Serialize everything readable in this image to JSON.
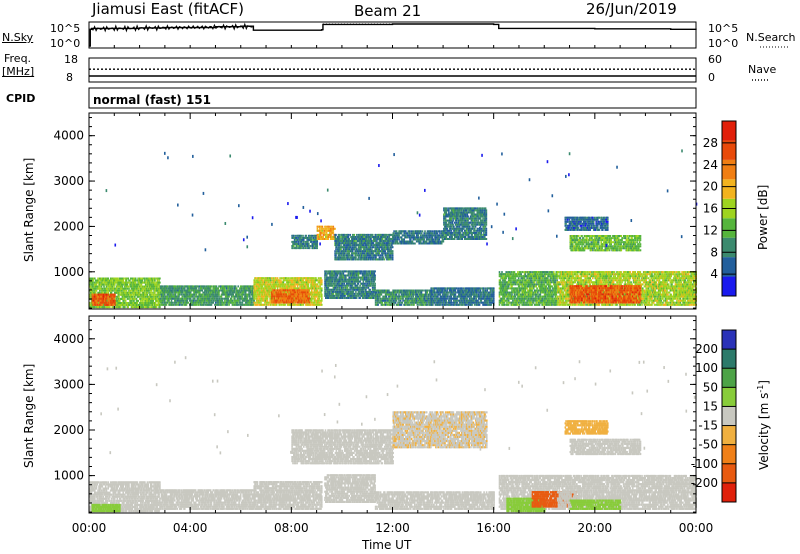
{
  "header": {
    "title": "Jiamusi East (fitACF)",
    "beam": "Beam 21",
    "date": "26/Jun/2019"
  },
  "side_labels": {
    "nsky": "N.Sky",
    "nsearch": "N.Search",
    "freq_line1": "Freq.",
    "freq_line2": "[MHz]",
    "nave": "Nave",
    "cpid": "CPID",
    "mode": "normal (fast) 151"
  },
  "noise_axis": {
    "left": [
      "10^5",
      "10^0"
    ],
    "right": [
      "10^5",
      "10^0"
    ]
  },
  "freq_axis": {
    "left": [
      "18",
      "8"
    ],
    "right": [
      "60",
      "0"
    ]
  },
  "x_axis": {
    "label": "Time UT",
    "ticks": [
      "00:00",
      "04:00",
      "08:00",
      "12:00",
      "16:00",
      "20:00",
      "00:00"
    ],
    "range_hours": [
      0,
      24
    ]
  },
  "colors": {
    "power": [
      "#1a1aee",
      "#225f9c",
      "#3b8a6e",
      "#55b53c",
      "#9ed41f",
      "#f2b31e",
      "#f07e12",
      "#e84a0a",
      "#e11f0a"
    ],
    "velocity": [
      "#2a32b8",
      "#2c7a6a",
      "#4da347",
      "#88cc3a",
      "#c8c8c0",
      "#f0b040",
      "#f08018",
      "#e85a10",
      "#e0200a"
    ]
  },
  "chart_data": [
    {
      "type": "line",
      "title": "N.Sky",
      "ylabel": "N.Sky",
      "x_unit": "hours UT",
      "y_scale": "log",
      "ylim": [
        "10^0",
        "10^5"
      ],
      "series": [
        {
          "name": "N.Sky",
          "x": [
            0,
            0.05,
            0.1,
            2,
            3,
            5,
            6,
            6.5,
            9.2,
            9.25,
            12,
            16,
            16.2,
            20,
            23,
            24
          ],
          "log_values": [
            0,
            3.8,
            4.0,
            4.1,
            4.2,
            4.4,
            4.5,
            3.6,
            3.7,
            4.9,
            5.0,
            4.9,
            4.0,
            3.9,
            3.8,
            3.7
          ]
        }
      ]
    },
    {
      "type": "line",
      "title": "Freq.",
      "ylabel": "Freq. [MHz]",
      "ylim": [
        8,
        18
      ],
      "y2label": "Nave",
      "y2lim": [
        0,
        60
      ],
      "series": [
        {
          "name": "Nave",
          "x": [
            0,
            24
          ],
          "values": [
            32,
            32
          ]
        },
        {
          "name": "Freq.",
          "x": [
            0,
            24
          ],
          "values": [
            10.5,
            10.5
          ]
        }
      ]
    },
    {
      "type": "heatmap",
      "title": "Power [dB]",
      "xlabel": "Time UT",
      "ylabel": "Slant Range [km]",
      "ylim": [
        180,
        4500
      ],
      "yticks": [
        1000,
        2000,
        3000,
        4000
      ],
      "colorbar": {
        "label": "Power [dB]",
        "ticks": [
          4,
          8,
          12,
          16,
          20,
          24,
          28
        ],
        "range": [
          0,
          32
        ]
      },
      "regions": [
        {
          "t": [
            0,
            2.8
          ],
          "r": [
            200,
            850
          ],
          "value": 14
        },
        {
          "t": [
            0.1,
            1.0
          ],
          "r": [
            250,
            500
          ],
          "value": 26
        },
        {
          "t": [
            2.8,
            6.5
          ],
          "r": [
            250,
            700
          ],
          "value": 10
        },
        {
          "t": [
            6.5,
            9.2
          ],
          "r": [
            250,
            850
          ],
          "value": 17
        },
        {
          "t": [
            7.2,
            8.7
          ],
          "r": [
            300,
            600
          ],
          "value": 25
        },
        {
          "t": [
            9.3,
            11.3
          ],
          "r": [
            400,
            1000
          ],
          "value": 8
        },
        {
          "t": [
            11.3,
            13.5
          ],
          "r": [
            250,
            600
          ],
          "value": 9
        },
        {
          "t": [
            13.5,
            16.0
          ],
          "r": [
            250,
            650
          ],
          "value": 7
        },
        {
          "t": [
            16.2,
            18.5
          ],
          "r": [
            250,
            1000
          ],
          "value": 12
        },
        {
          "t": [
            18.5,
            24.0
          ],
          "r": [
            250,
            1000
          ],
          "value": 16
        },
        {
          "t": [
            19.0,
            21.8
          ],
          "r": [
            300,
            700
          ],
          "value": 26
        },
        {
          "t": [
            8.0,
            9.0
          ],
          "r": [
            1500,
            1800
          ],
          "value": 8
        },
        {
          "t": [
            9.0,
            9.7
          ],
          "r": [
            1700,
            2000
          ],
          "value": 20
        },
        {
          "t": [
            9.7,
            12.0
          ],
          "r": [
            1250,
            1800
          ],
          "value": 8
        },
        {
          "t": [
            12.0,
            14.0
          ],
          "r": [
            1600,
            1900
          ],
          "value": 7
        },
        {
          "t": [
            14.0,
            15.7
          ],
          "r": [
            1700,
            2400
          ],
          "value": 8
        },
        {
          "t": [
            19.0,
            21.8
          ],
          "r": [
            1450,
            1800
          ],
          "value": 13
        },
        {
          "t": [
            18.8,
            20.5
          ],
          "r": [
            1900,
            2200
          ],
          "value": 6
        }
      ]
    },
    {
      "type": "heatmap",
      "title": "Velocity [m s^-1]",
      "xlabel": "Time UT",
      "ylabel": "Slant Range [km]",
      "ylim": [
        180,
        4500
      ],
      "yticks": [
        1000,
        2000,
        3000,
        4000
      ],
      "colorbar": {
        "label": "Velocity [m s^-1]",
        "ticks": [
          200,
          100,
          50,
          15,
          -15,
          -50,
          -100,
          -200
        ]
      },
      "regions": [
        {
          "t": [
            0,
            2.8
          ],
          "r": [
            200,
            850
          ],
          "value": 0
        },
        {
          "t": [
            0.1,
            1.2
          ],
          "r": [
            200,
            350
          ],
          "value": 35
        },
        {
          "t": [
            2.8,
            6.5
          ],
          "r": [
            250,
            700
          ],
          "value": 0
        },
        {
          "t": [
            6.5,
            9.2
          ],
          "r": [
            250,
            850
          ],
          "value": 0
        },
        {
          "t": [
            9.3,
            11.3
          ],
          "r": [
            400,
            1000
          ],
          "value": 0
        },
        {
          "t": [
            11.3,
            16.0
          ],
          "r": [
            250,
            650
          ],
          "value": -5
        },
        {
          "t": [
            16.2,
            18.5
          ],
          "r": [
            250,
            1000
          ],
          "value": 0
        },
        {
          "t": [
            16.5,
            18.0
          ],
          "r": [
            200,
            500
          ],
          "value": 40
        },
        {
          "t": [
            17.5,
            19.3
          ],
          "r": [
            300,
            650
          ],
          "value": -120
        },
        {
          "t": [
            18.5,
            24.0
          ],
          "r": [
            250,
            1000
          ],
          "value": 0
        },
        {
          "t": [
            19.0,
            21.0
          ],
          "r": [
            250,
            450
          ],
          "value": 30
        },
        {
          "t": [
            8.0,
            12.0
          ],
          "r": [
            1250,
            2000
          ],
          "value": 0
        },
        {
          "t": [
            12.0,
            15.7
          ],
          "r": [
            1600,
            2400
          ],
          "value": -10
        },
        {
          "t": [
            19.0,
            21.8
          ],
          "r": [
            1450,
            1800
          ],
          "value": 0
        },
        {
          "t": [
            18.8,
            20.5
          ],
          "r": [
            1900,
            2200
          ],
          "value": -40
        }
      ]
    }
  ]
}
